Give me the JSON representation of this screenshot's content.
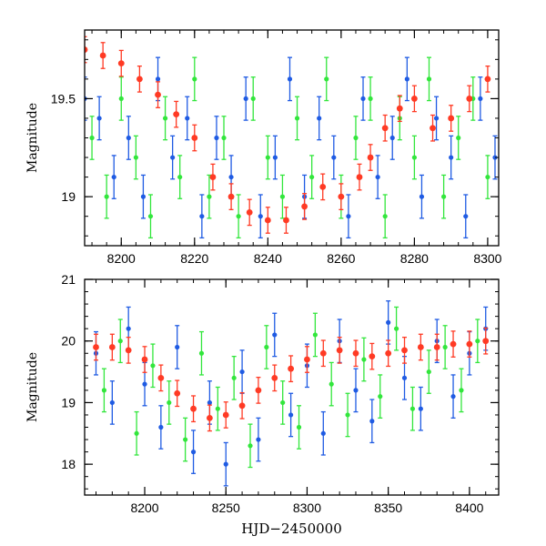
{
  "colors": {
    "blue": "#1f5be3",
    "green": "#32e63c",
    "red": "#ff3a24",
    "axis": "#000000"
  },
  "chart_data": [
    {
      "type": "scatter",
      "title": "",
      "xlabel": "",
      "ylabel": "Magnitude",
      "xlim": [
        8190,
        8303
      ],
      "ylim": [
        19.85,
        18.75
      ],
      "y_inverted": true,
      "xticks": [
        8200,
        8220,
        8240,
        8260,
        8280,
        8300
      ],
      "xticklabels": [
        "8200",
        "8220",
        "8240",
        "8260",
        "8280",
        "8300"
      ],
      "yticks": [
        19,
        19.5
      ],
      "yticklabels": [
        "19",
        "19.5"
      ],
      "series": [
        {
          "color": "blue",
          "x": [
            8190,
            8194,
            8198,
            8202,
            8206,
            8210,
            8214,
            8218,
            8222,
            8226,
            8230,
            8234,
            8238,
            8242,
            8246,
            8250,
            8254,
            8258,
            8262,
            8266,
            8270,
            8274,
            8278,
            8282,
            8286,
            8290,
            8294,
            8298,
            8302
          ],
          "y": [
            19.5,
            19.4,
            19.1,
            19.3,
            19.0,
            19.6,
            19.2,
            19.4,
            18.9,
            19.3,
            19.1,
            19.5,
            18.9,
            19.2,
            19.6,
            19.0,
            19.4,
            19.2,
            18.9,
            19.5,
            19.1,
            19.3,
            19.6,
            19.0,
            19.4,
            19.2,
            18.9,
            19.5,
            19.2
          ]
        },
        {
          "color": "green",
          "x": [
            8192,
            8196,
            8200,
            8204,
            8208,
            8212,
            8216,
            8220,
            8224,
            8228,
            8232,
            8236,
            8240,
            8244,
            8248,
            8252,
            8256,
            8260,
            8264,
            8268,
            8272,
            8276,
            8280,
            8284,
            8288,
            8292,
            8296,
            8300
          ],
          "y": [
            19.3,
            19.0,
            19.5,
            19.2,
            18.9,
            19.4,
            19.1,
            19.6,
            19.0,
            19.3,
            18.9,
            19.5,
            19.2,
            19.0,
            19.4,
            19.1,
            19.6,
            19.0,
            19.3,
            19.5,
            18.9,
            19.4,
            19.2,
            19.6,
            19.0,
            19.3,
            19.5,
            19.1
          ]
        },
        {
          "color": "red",
          "x": [
            8190,
            8195,
            8200,
            8205,
            8210,
            8215,
            8220,
            8225,
            8230,
            8235,
            8240,
            8245,
            8250,
            8255,
            8260,
            8265,
            8268,
            8272,
            8276,
            8280,
            8285,
            8290,
            8295,
            8300
          ],
          "y": [
            19.75,
            19.72,
            19.68,
            19.6,
            19.52,
            19.42,
            19.3,
            19.1,
            19.0,
            18.92,
            18.88,
            18.88,
            18.95,
            19.05,
            19.0,
            19.1,
            19.2,
            19.35,
            19.45,
            19.5,
            19.35,
            19.4,
            19.5,
            19.6
          ]
        }
      ]
    },
    {
      "type": "scatter",
      "title": "",
      "xlabel": "HJD−2450000",
      "ylabel": "Magnitude",
      "xlim": [
        8163,
        8418
      ],
      "ylim": [
        21,
        17.5
      ],
      "y_inverted": true,
      "xticks": [
        8200,
        8250,
        8300,
        8350,
        8400
      ],
      "xticklabels": [
        "8200",
        "8250",
        "8300",
        "8350",
        "8400"
      ],
      "yticks": [
        18,
        19,
        20,
        21
      ],
      "yticklabels": [
        "18",
        "19",
        "20",
        "21"
      ],
      "series": [
        {
          "color": "blue",
          "x": [
            8170,
            8180,
            8190,
            8200,
            8210,
            8220,
            8230,
            8240,
            8250,
            8260,
            8270,
            8280,
            8290,
            8300,
            8310,
            8320,
            8330,
            8340,
            8350,
            8360,
            8370,
            8380,
            8390,
            8400,
            8410
          ],
          "y": [
            19.8,
            19.0,
            20.2,
            19.3,
            18.6,
            19.9,
            18.2,
            19.0,
            18.0,
            19.5,
            18.4,
            20.1,
            18.8,
            19.6,
            18.5,
            20.0,
            19.2,
            18.7,
            20.3,
            19.4,
            18.9,
            20.0,
            19.1,
            19.8,
            20.2
          ]
        },
        {
          "color": "green",
          "x": [
            8175,
            8185,
            8195,
            8205,
            8215,
            8225,
            8235,
            8245,
            8255,
            8265,
            8275,
            8285,
            8295,
            8305,
            8315,
            8325,
            8335,
            8345,
            8355,
            8365,
            8375,
            8385,
            8395,
            8405
          ],
          "y": [
            19.2,
            20.0,
            18.5,
            19.6,
            19.0,
            18.4,
            19.8,
            18.9,
            19.4,
            18.3,
            19.9,
            19.0,
            18.6,
            20.1,
            19.3,
            18.8,
            19.7,
            19.1,
            20.2,
            18.9,
            19.5,
            19.9,
            19.2,
            20.0
          ]
        },
        {
          "color": "red",
          "x": [
            8170,
            8180,
            8190,
            8200,
            8210,
            8220,
            8230,
            8240,
            8250,
            8260,
            8270,
            8280,
            8290,
            8300,
            8310,
            8320,
            8330,
            8340,
            8350,
            8360,
            8370,
            8380,
            8390,
            8400,
            8410
          ],
          "y": [
            19.9,
            19.9,
            19.85,
            19.7,
            19.4,
            19.15,
            18.9,
            18.75,
            18.8,
            18.95,
            19.2,
            19.4,
            19.55,
            19.7,
            19.8,
            19.85,
            19.8,
            19.75,
            19.8,
            19.85,
            19.9,
            19.9,
            19.95,
            19.95,
            20.0
          ]
        }
      ]
    }
  ]
}
